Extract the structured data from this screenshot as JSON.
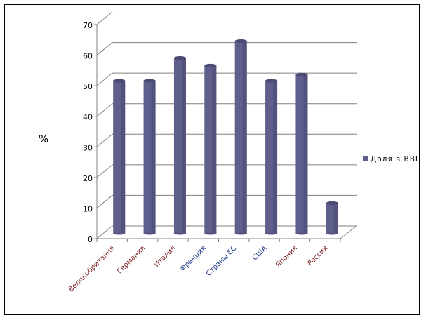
{
  "chart_data": {
    "type": "bar",
    "style": "3d-cylinder",
    "categories": [
      "Великобритания",
      "Германия",
      "Италия",
      "Франция",
      "Страны ЕС",
      "США",
      "Япония",
      "Россия"
    ],
    "series": [
      {
        "name": "Доля в ВВП",
        "values": [
          50,
          50,
          57.5,
          55,
          63,
          50,
          52,
          10
        ]
      }
    ],
    "ylabel": "%",
    "xlabel": "",
    "title": "",
    "ylim": [
      0,
      70
    ],
    "yticks": [
      0,
      10,
      20,
      30,
      40,
      50,
      60,
      70
    ],
    "grid": true,
    "legend": "right",
    "colors": {
      "bar": "#5f5f8e",
      "bar_top": "#4a4a72",
      "grid": "#808080"
    },
    "category_label_colors": [
      "#7a1f1f",
      "#7a1f1f",
      "#7a1f1f",
      "#1f3a8a",
      "#1f3a8a",
      "#1f3a8a",
      "#7a1f1f",
      "#7a1f1f"
    ]
  }
}
